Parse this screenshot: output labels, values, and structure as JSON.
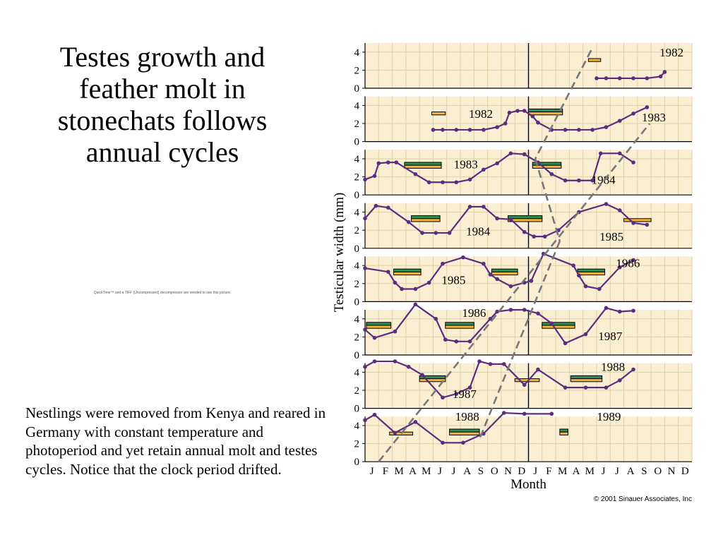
{
  "slide": {
    "title": "Testes growth and feather molt in stonechats follows annual cycles",
    "quicktime_note": "QuickTime™ and a TIFF (Uncompressed) decompressor are needed to see this picture.",
    "caption": "Nestlings were removed from Kenya and reared in Germany with constant temperature and photoperiod and yet retain annual molt and testes cycles. Notice that the clock period drifted."
  },
  "chart_data": {
    "type": "line",
    "ylabel": "Testicular width (mm)",
    "xlabel": "Month",
    "yticks": [
      0,
      2,
      4
    ],
    "ylim": [
      0,
      5
    ],
    "x_tick_labels": [
      "J",
      "F",
      "M",
      "A",
      "M",
      "J",
      "J",
      "A",
      "S",
      "O",
      "N",
      "D",
      "J",
      "F",
      "M",
      "A",
      "M",
      "J",
      "J",
      "A",
      "S",
      "O",
      "N",
      "D"
    ],
    "credit": "© 2001 Sinauer Associates, Inc",
    "colors": {
      "background": "#fbefd3",
      "line": "#5b2d7f",
      "molt_green": "#2f8f53",
      "molt_orange": "#f5b33b",
      "dashed": "#777777",
      "grid": "#e2cfa6"
    },
    "panels": [
      {
        "year_labels": [
          {
            "text": "1982",
            "x": 22.5,
            "y": 4.0
          }
        ],
        "points": [
          [
            17,
            1.1
          ],
          [
            17.7,
            1.1
          ],
          [
            18.7,
            1.1
          ],
          [
            19.7,
            1.1
          ],
          [
            20.7,
            1.1
          ],
          [
            21.7,
            1.3
          ],
          [
            22,
            1.8
          ]
        ],
        "molt": [
          {
            "start": 16.4,
            "end": 17.3,
            "levels": [
              0
            ]
          }
        ]
      },
      {
        "year_labels": [
          {
            "text": "1982",
            "x": 8.5,
            "y": 3.1
          },
          {
            "text": "1983",
            "x": 21.2,
            "y": 2.7
          }
        ],
        "points": [
          [
            5,
            1.3
          ],
          [
            5.7,
            1.3
          ],
          [
            6.7,
            1.3
          ],
          [
            7.7,
            1.3
          ],
          [
            8.7,
            1.3
          ],
          [
            9.7,
            1.6
          ],
          [
            10.3,
            2.0
          ],
          [
            10.6,
            3.2
          ],
          [
            11.2,
            3.4
          ],
          [
            11.7,
            3.4
          ],
          [
            12.3,
            2.8
          ],
          [
            12.7,
            2.1
          ],
          [
            13.7,
            1.3
          ],
          [
            14.7,
            1.3
          ],
          [
            15.7,
            1.3
          ],
          [
            16.7,
            1.3
          ],
          [
            17.7,
            1.6
          ],
          [
            18.7,
            2.3
          ],
          [
            19.7,
            3.1
          ],
          [
            20.7,
            3.8
          ]
        ],
        "molt": [
          {
            "start": 4.9,
            "end": 5.9,
            "levels": [
              0
            ]
          },
          {
            "start": 12.0,
            "end": 14.5,
            "levels": [
              1,
              0
            ]
          }
        ]
      },
      {
        "year_labels": [
          {
            "text": "1983",
            "x": 7.4,
            "y": 3.4
          },
          {
            "text": "1984",
            "x": 17.5,
            "y": 1.7
          }
        ],
        "points": [
          [
            0,
            1.7
          ],
          [
            0.7,
            2.1
          ],
          [
            1.0,
            3.5
          ],
          [
            1.7,
            3.6
          ],
          [
            2.3,
            3.6
          ],
          [
            3.7,
            2.3
          ],
          [
            4.7,
            1.4
          ],
          [
            5.7,
            1.4
          ],
          [
            6.7,
            1.4
          ],
          [
            7.7,
            1.7
          ],
          [
            8.7,
            2.8
          ],
          [
            9.7,
            3.5
          ],
          [
            10.7,
            4.6
          ],
          [
            11.7,
            4.5
          ],
          [
            12.7,
            3.6
          ],
          [
            13.7,
            2.3
          ],
          [
            14.7,
            1.6
          ],
          [
            15.7,
            1.6
          ],
          [
            16.7,
            1.6
          ],
          [
            17.3,
            4.6
          ],
          [
            18.7,
            4.6
          ],
          [
            19.7,
            3.6
          ]
        ],
        "molt": [
          {
            "start": 2.9,
            "end": 5.6,
            "levels": [
              1,
              0
            ]
          },
          {
            "start": 12.3,
            "end": 14.4,
            "levels": [
              1,
              0
            ]
          }
        ]
      },
      {
        "year_labels": [
          {
            "text": "1984",
            "x": 8.3,
            "y": 1.9
          },
          {
            "text": "1985",
            "x": 18.1,
            "y": 1.3
          }
        ],
        "points": [
          [
            0,
            3.3
          ],
          [
            0.8,
            4.7
          ],
          [
            1.7,
            4.5
          ],
          [
            3.2,
            2.9
          ],
          [
            4.2,
            1.7
          ],
          [
            5.2,
            1.7
          ],
          [
            6.2,
            1.7
          ],
          [
            7.7,
            4.6
          ],
          [
            8.7,
            4.6
          ],
          [
            9.7,
            3.3
          ],
          [
            10.7,
            3.2
          ],
          [
            11.7,
            1.8
          ],
          [
            12.4,
            1.3
          ],
          [
            13.2,
            1.3
          ],
          [
            14.2,
            2.0
          ],
          [
            15.7,
            4.0
          ],
          [
            17.7,
            4.9
          ],
          [
            18.7,
            4.2
          ],
          [
            19.7,
            2.8
          ],
          [
            20.7,
            2.6
          ]
        ],
        "molt": [
          {
            "start": 3.4,
            "end": 5.5,
            "levels": [
              1,
              0
            ]
          },
          {
            "start": 10.5,
            "end": 13.0,
            "levels": [
              1,
              0
            ]
          },
          {
            "start": 19.0,
            "end": 21.0,
            "levels": [
              0
            ]
          }
        ]
      },
      {
        "year_labels": [
          {
            "text": "1985",
            "x": 6.5,
            "y": 2.4
          },
          {
            "text": "1986",
            "x": 19.3,
            "y": 4.3
          }
        ],
        "points": [
          [
            0,
            3.7
          ],
          [
            1.7,
            3.3
          ],
          [
            2.2,
            2.1
          ],
          [
            2.7,
            1.4
          ],
          [
            3.7,
            1.4
          ],
          [
            4.7,
            2.1
          ],
          [
            5.7,
            4.2
          ],
          [
            7.2,
            4.9
          ],
          [
            8.7,
            4.2
          ],
          [
            9.2,
            3.0
          ],
          [
            9.7,
            2.5
          ],
          [
            10.7,
            1.7
          ],
          [
            11.7,
            2.1
          ],
          [
            12.2,
            2.3
          ],
          [
            13.1,
            5.3
          ],
          [
            15.3,
            4.0
          ],
          [
            15.7,
            2.9
          ],
          [
            16.2,
            1.7
          ],
          [
            17.2,
            1.4
          ],
          [
            18.7,
            3.8
          ],
          [
            19.7,
            4.6
          ]
        ],
        "molt": [
          {
            "start": 2.1,
            "end": 4.1,
            "levels": [
              1,
              0
            ]
          },
          {
            "start": 9.3,
            "end": 11.2,
            "levels": [
              1,
              0
            ]
          },
          {
            "start": 15.6,
            "end": 17.6,
            "levels": [
              1,
              0
            ]
          }
        ]
      },
      {
        "year_labels": [
          {
            "text": "1986",
            "x": 8.0,
            "y": 4.7
          },
          {
            "text": "1987",
            "x": 18.0,
            "y": 2.1
          }
        ],
        "points": [
          [
            0,
            2.8
          ],
          [
            0.7,
            1.9
          ],
          [
            2.2,
            2.6
          ],
          [
            3.7,
            5.6
          ],
          [
            5.2,
            4.0
          ],
          [
            5.9,
            1.7
          ],
          [
            6.7,
            1.5
          ],
          [
            7.7,
            1.5
          ],
          [
            9.2,
            4.0
          ],
          [
            9.7,
            4.8
          ],
          [
            10.7,
            5.0
          ],
          [
            11.7,
            5.0
          ],
          [
            12.7,
            4.6
          ],
          [
            13.7,
            3.5
          ],
          [
            14.7,
            1.3
          ],
          [
            16.2,
            2.3
          ],
          [
            17.7,
            5.2
          ],
          [
            18.7,
            4.8
          ],
          [
            19.7,
            4.9
          ]
        ],
        "molt": [
          {
            "start": 0.1,
            "end": 1.9,
            "levels": [
              1,
              0
            ]
          },
          {
            "start": 5.9,
            "end": 8.0,
            "levels": [
              1,
              0
            ]
          },
          {
            "start": 13.0,
            "end": 15.4,
            "levels": [
              1,
              0
            ]
          }
        ]
      },
      {
        "year_labels": [
          {
            "text": "1988",
            "x": 18.2,
            "y": 4.6
          },
          {
            "text": "1987",
            "x": 7.3,
            "y": 1.6
          }
        ],
        "points": [
          [
            0,
            4.6
          ],
          [
            0.7,
            5.2
          ],
          [
            2.2,
            5.2
          ],
          [
            3.2,
            4.6
          ],
          [
            4.2,
            3.7
          ],
          [
            5.7,
            1.2
          ],
          [
            6.7,
            1.6
          ],
          [
            7.7,
            2.3
          ],
          [
            8.4,
            5.2
          ],
          [
            9.2,
            4.9
          ],
          [
            10.2,
            4.9
          ],
          [
            11.7,
            2.6
          ],
          [
            12.7,
            4.3
          ],
          [
            14.7,
            2.3
          ],
          [
            16.2,
            2.3
          ],
          [
            17.7,
            2.3
          ],
          [
            18.7,
            3.1
          ],
          [
            19.7,
            4.3
          ]
        ],
        "molt": [
          {
            "start": 4.0,
            "end": 5.9,
            "levels": [
              1,
              0
            ]
          },
          {
            "start": 11.0,
            "end": 12.8,
            "levels": [
              0
            ]
          },
          {
            "start": 15.1,
            "end": 17.4,
            "levels": [
              1,
              0
            ]
          }
        ]
      },
      {
        "year_labels": [
          {
            "text": "1988",
            "x": 7.5,
            "y": 5.0
          },
          {
            "text": "1989",
            "x": 17.9,
            "y": 5.0
          }
        ],
        "points": [
          [
            0,
            4.6
          ],
          [
            0.7,
            5.2
          ],
          [
            2.2,
            3.2
          ],
          [
            3.7,
            4.4
          ],
          [
            5.7,
            2.1
          ],
          [
            7.2,
            2.1
          ],
          [
            8.7,
            3.1
          ],
          [
            10.2,
            5.4
          ],
          [
            11.7,
            5.3
          ],
          [
            13.7,
            5.3
          ]
        ],
        "molt": [
          {
            "start": 1.8,
            "end": 3.5,
            "levels": [
              0
            ]
          },
          {
            "start": 6.2,
            "end": 8.4,
            "levels": [
              1,
              0
            ]
          },
          {
            "start": 14.3,
            "end": 14.9,
            "levels": [
              1,
              0
            ]
          }
        ]
      }
    ],
    "trend_lines": [
      {
        "from": [
          1.0,
          7,
          0.0
        ],
        "to": [
          20.9,
          1,
          2.0
        ]
      },
      {
        "from": [
          16.6,
          0,
          4.2
        ],
        "to": [
          12.5,
          2,
          4.0
        ]
      },
      {
        "from": [
          12.5,
          2,
          4.0
        ],
        "to": [
          14.3,
          3,
          0.8
        ]
      },
      {
        "from": [
          14.3,
          3,
          0.8
        ],
        "to": [
          8.4,
          7,
          2.5
        ]
      }
    ]
  }
}
